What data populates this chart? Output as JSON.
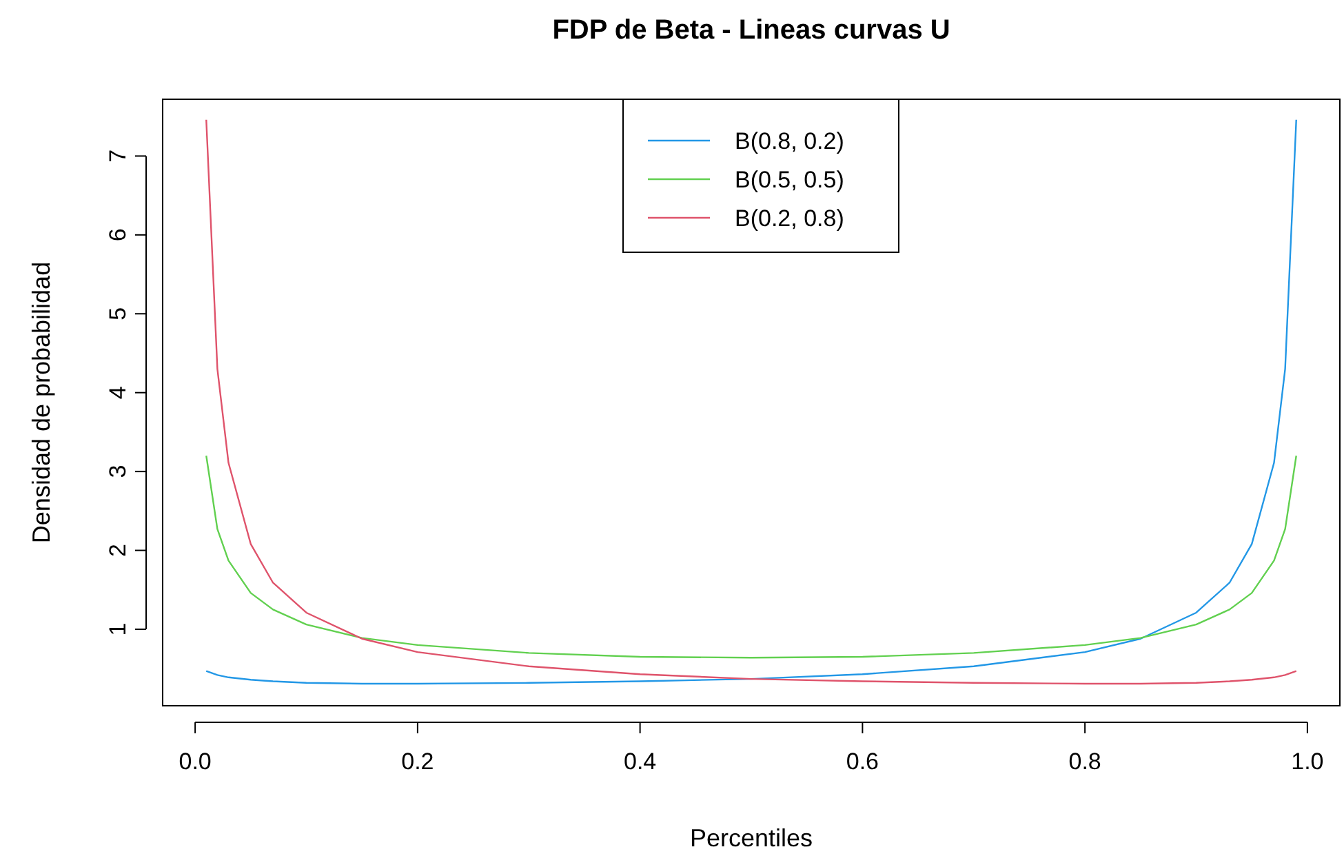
{
  "chart_data": {
    "type": "line",
    "title": "FDP de Beta - Lineas curvas U",
    "xlabel": "Percentiles",
    "ylabel": "Densidad de probabilidad",
    "x": [
      0.01,
      0.02,
      0.03,
      0.05,
      0.07,
      0.1,
      0.15,
      0.2,
      0.3,
      0.4,
      0.5,
      0.6,
      0.7,
      0.8,
      0.85,
      0.9,
      0.93,
      0.95,
      0.97,
      0.98,
      0.99
    ],
    "series": [
      {
        "name": "B(0.8, 0.2)",
        "color": "#2297e6",
        "values": [
          0.47,
          0.42,
          0.39,
          0.36,
          0.34,
          0.32,
          0.31,
          0.31,
          0.32,
          0.34,
          0.37,
          0.43,
          0.53,
          0.71,
          0.88,
          1.21,
          1.59,
          2.08,
          3.11,
          4.3,
          7.46
        ]
      },
      {
        "name": "B(0.5, 0.5)",
        "color": "#61d04f",
        "values": [
          3.2,
          2.27,
          1.87,
          1.46,
          1.25,
          1.06,
          0.89,
          0.8,
          0.7,
          0.65,
          0.64,
          0.65,
          0.7,
          0.8,
          0.89,
          1.06,
          1.25,
          1.46,
          1.87,
          2.27,
          3.2
        ]
      },
      {
        "name": "B(0.2, 0.8)",
        "color": "#df536b",
        "values": [
          7.46,
          4.3,
          3.11,
          2.08,
          1.59,
          1.21,
          0.88,
          0.71,
          0.53,
          0.43,
          0.37,
          0.34,
          0.32,
          0.31,
          0.31,
          0.32,
          0.34,
          0.36,
          0.39,
          0.42,
          0.47
        ]
      }
    ],
    "xlim": [
      -0.0292,
      1.0292
    ],
    "ylim": [
      0.03,
      7.72
    ],
    "xticks": [
      {
        "value": 0,
        "label": "0.0"
      },
      0.2,
      0.4,
      0.6,
      0.8,
      {
        "value": 1,
        "label": "1.0"
      }
    ],
    "yticks": [
      1,
      2,
      3,
      4,
      5,
      6,
      7
    ],
    "legend": "top",
    "grid": false,
    "marker": "none",
    "line_style": "solid"
  }
}
